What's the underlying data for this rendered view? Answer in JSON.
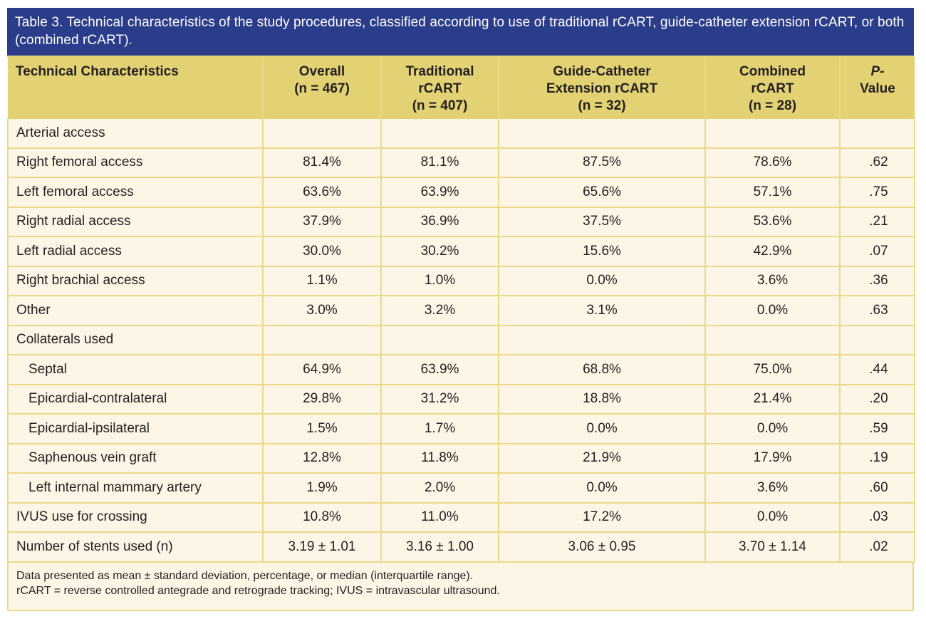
{
  "caption": "Table 3. Technical characteristics of the study procedures, classified according to use of traditional rCART, guide-catheter extension rCART, or both (combined rCART).",
  "colors": {
    "caption_bg": "#2b3d8a",
    "header_bg": "#e3d274",
    "body_bg": "#fdf6e6",
    "grid": "#ead988"
  },
  "header": {
    "col0": [
      "Technical Characteristics"
    ],
    "col1": [
      "Overall",
      "(n = 467)"
    ],
    "col2": [
      "Traditional",
      "rCART",
      "(n = 407)"
    ],
    "col3": [
      "Guide-Catheter",
      "Extension rCART",
      "(n = 32)"
    ],
    "col4": [
      "Combined",
      "rCART",
      "(n = 28)"
    ],
    "col5": [
      "P-",
      "Value"
    ]
  },
  "rows": [
    {
      "label": "Arterial access",
      "overall": "",
      "traditional": "",
      "guide": "",
      "combined": "",
      "p": ""
    },
    {
      "label": "Right femoral access",
      "overall": "81.4%",
      "traditional": "81.1%",
      "guide": "87.5%",
      "combined": "78.6%",
      "p": ".62"
    },
    {
      "label": "Left femoral access",
      "overall": "63.6%",
      "traditional": "63.9%",
      "guide": "65.6%",
      "combined": "57.1%",
      "p": ".75"
    },
    {
      "label": "Right radial access",
      "overall": "37.9%",
      "traditional": "36.9%",
      "guide": "37.5%",
      "combined": "53.6%",
      "p": ".21"
    },
    {
      "label": "Left radial access",
      "overall": "30.0%",
      "traditional": "30.2%",
      "guide": "15.6%",
      "combined": "42.9%",
      "p": ".07"
    },
    {
      "label": "Right brachial access",
      "overall": "1.1%",
      "traditional": "1.0%",
      "guide": "0.0%",
      "combined": "3.6%",
      "p": ".36"
    },
    {
      "label": "Other",
      "overall": "3.0%",
      "traditional": "3.2%",
      "guide": "3.1%",
      "combined": "0.0%",
      "p": ".63"
    },
    {
      "label": "Collaterals used",
      "overall": "",
      "traditional": "",
      "guide": "",
      "combined": "",
      "p": ""
    },
    {
      "label": "Septal",
      "overall": "64.9%",
      "traditional": "63.9%",
      "guide": "68.8%",
      "combined": "75.0%",
      "p": ".44"
    },
    {
      "label": "Epicardial-contralateral",
      "overall": "29.8%",
      "traditional": "31.2%",
      "guide": "18.8%",
      "combined": "21.4%",
      "p": ".20"
    },
    {
      "label": "Epicardial-ipsilateral",
      "overall": "1.5%",
      "traditional": "1.7%",
      "guide": "0.0%",
      "combined": "0.0%",
      "p": ".59"
    },
    {
      "label": "Saphenous vein graft",
      "overall": "12.8%",
      "traditional": "11.8%",
      "guide": "21.9%",
      "combined": "17.9%",
      "p": ".19"
    },
    {
      "label": "Left internal mammary artery",
      "overall": "1.9%",
      "traditional": "2.0%",
      "guide": "0.0%",
      "combined": "3.6%",
      "p": ".60"
    },
    {
      "label": "IVUS use for crossing",
      "overall": "10.8%",
      "traditional": "11.0%",
      "guide": "17.2%",
      "combined": "0.0%",
      "p": ".03"
    },
    {
      "label": "Number of stents used (n)",
      "overall": "3.19 ± 1.01",
      "traditional": "3.16 ± 1.00",
      "guide": "3.06 ± 0.95",
      "combined": "3.70 ± 1.14",
      "p": ".02"
    }
  ],
  "footnote": [
    "Data presented as mean ± standard deviation, percentage, or median (interquartile range).",
    "rCART = reverse controlled antegrade and retrograde tracking; IVUS =  intravascular ultrasound."
  ]
}
